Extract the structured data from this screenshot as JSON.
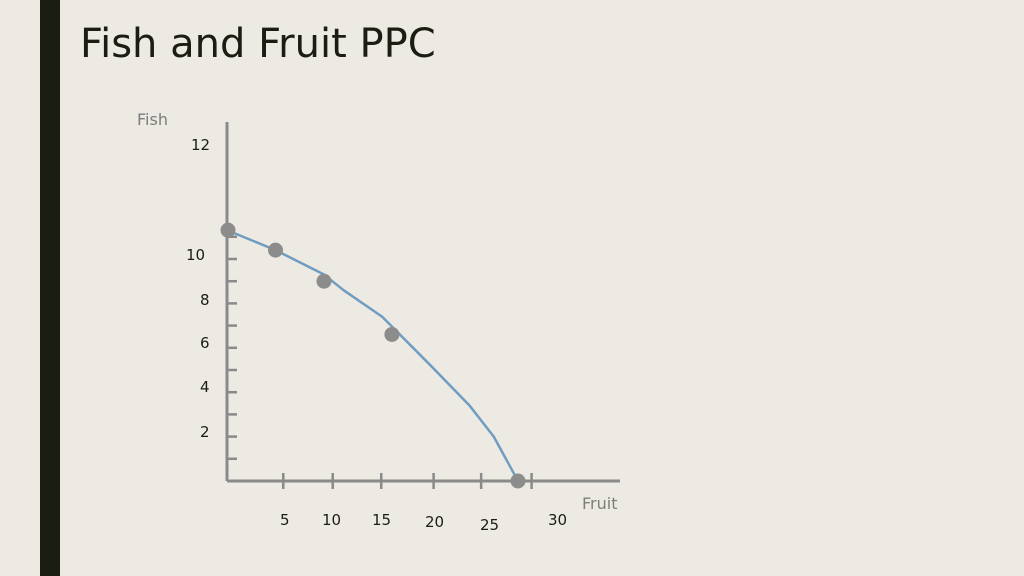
{
  "slide": {
    "title": "Fish and Fruit PPC"
  },
  "colors": {
    "background": "#edeae3",
    "accent_bar": "#1b1c12",
    "axis": "#8a8a8a",
    "curve": "#6f9dc1",
    "points": "#8c8c8c"
  },
  "chart_data": {
    "type": "line",
    "title": "Fish and Fruit PPC",
    "xlabel": "Fruit",
    "ylabel": "Fish",
    "x_tick_labels": [
      "5",
      "10",
      "15",
      "20",
      "25",
      "30"
    ],
    "y_tick_labels": [
      "2",
      "4",
      "6",
      "8",
      "10",
      "12"
    ],
    "curve": {
      "x": [
        0,
        5,
        10,
        12,
        16,
        21,
        25,
        27.5,
        30
      ],
      "y": [
        11.3,
        10.4,
        9.3,
        8.6,
        7.4,
        5.2,
        3.4,
        2.0,
        0
      ]
    },
    "points": {
      "x": [
        0,
        5,
        10,
        17,
        30
      ],
      "y": [
        11.3,
        10.4,
        9.0,
        6.6,
        0
      ]
    }
  }
}
